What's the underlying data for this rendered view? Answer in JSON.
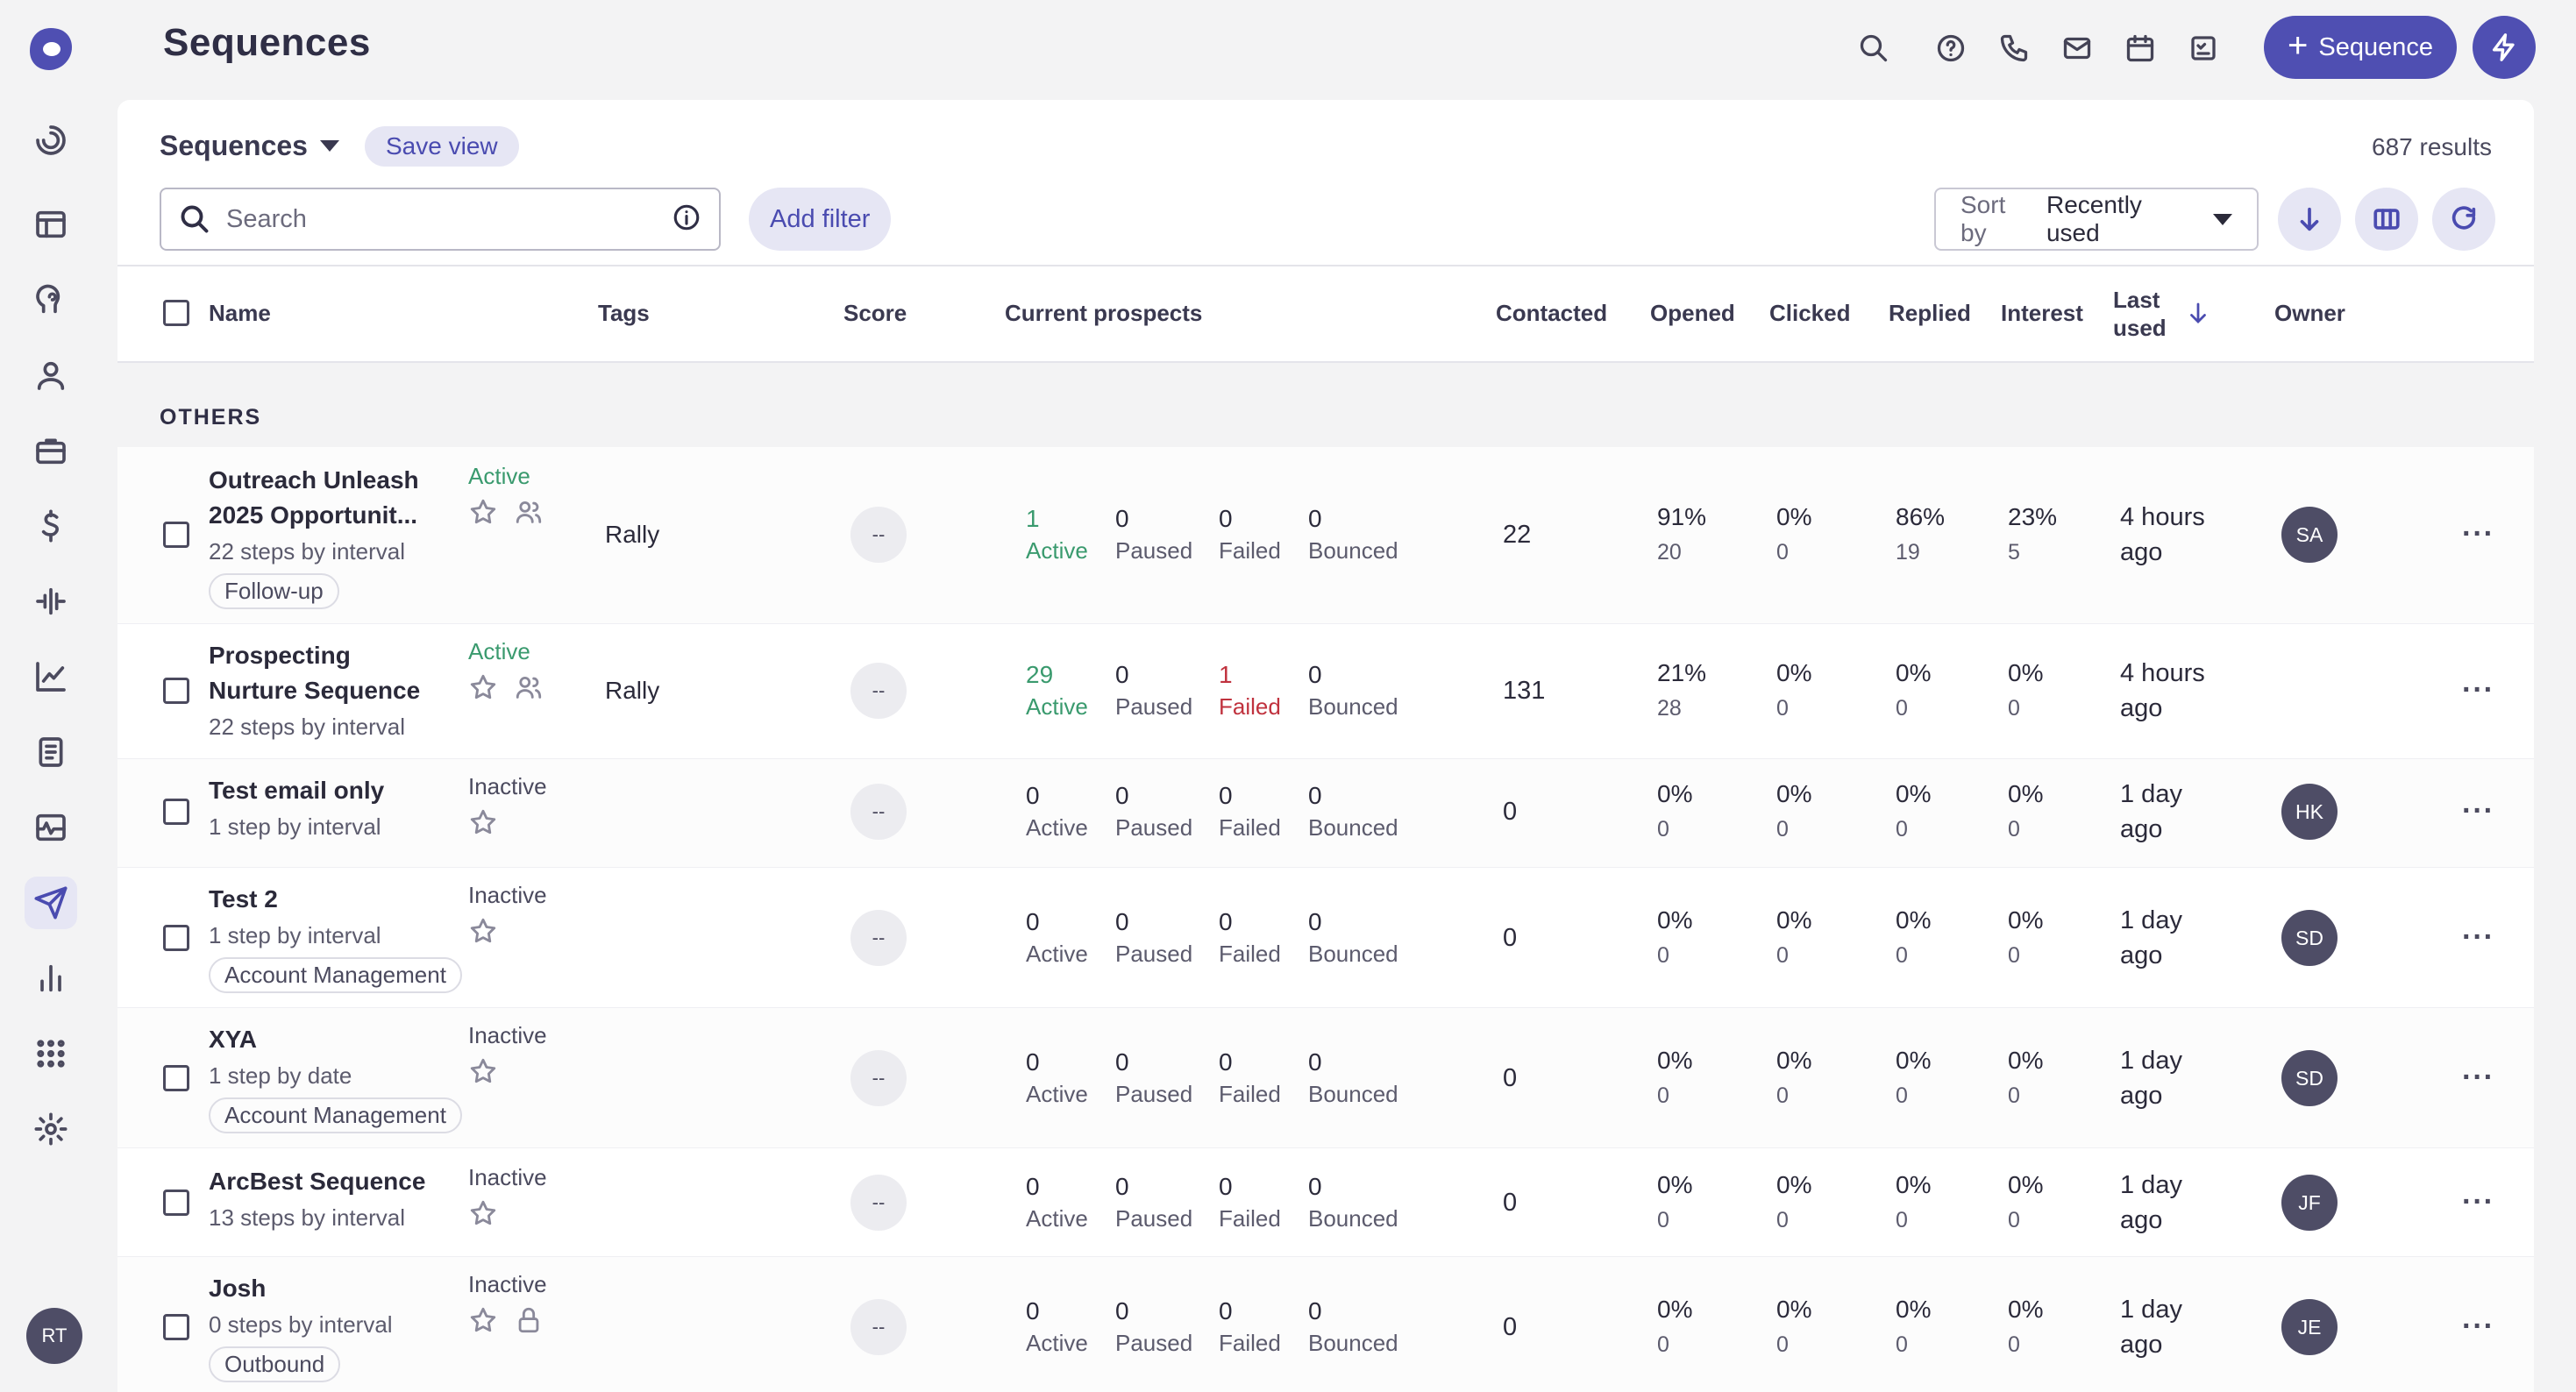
{
  "header": {
    "title": "Sequences",
    "new_sequence_label": "Sequence"
  },
  "user": {
    "initials": "RT"
  },
  "toolbar": {
    "view_name": "Sequences",
    "save_view_label": "Save view",
    "results": "687 results",
    "search_placeholder": "Search",
    "add_filter_label": "Add filter",
    "sort_label": "Sort by",
    "sort_value": "Recently used"
  },
  "columns": {
    "name": "Name",
    "tags": "Tags",
    "score": "Score",
    "current_prospects": "Current prospects",
    "contacted": "Contacted",
    "opened": "Opened",
    "clicked": "Clicked",
    "replied": "Replied",
    "interest": "Interest",
    "last_used_1": "Last",
    "last_used_2": "used",
    "owner": "Owner"
  },
  "group": {
    "label": "OTHERS"
  },
  "prospect_labels": {
    "active": "Active",
    "paused": "Paused",
    "failed": "Failed",
    "bounced": "Bounced"
  },
  "rows": [
    {
      "name_1": "Outreach Unleash",
      "name_2": "2025 Opportunit...",
      "sub": "22 steps by interval",
      "tag": "Follow-up",
      "status": "Active",
      "tags": "Rally",
      "score": "--",
      "active": "1",
      "paused": "0",
      "failed": "0",
      "bounced": "0",
      "contacted": "22",
      "opened": "91%",
      "opened_sub": "20",
      "clicked": "0%",
      "clicked_sub": "0",
      "replied": "86%",
      "replied_sub": "19",
      "interest": "23%",
      "interest_sub": "5",
      "last_1": "4 hours",
      "last_2": "ago",
      "owner": "SA",
      "more": "···"
    },
    {
      "name_1": "Prospecting",
      "name_2": "Nurture Sequence",
      "sub": "22 steps by interval",
      "tag": "",
      "status": "Active",
      "tags": "Rally",
      "score": "--",
      "active": "29",
      "paused": "0",
      "failed": "1",
      "bounced": "0",
      "contacted": "131",
      "opened": "21%",
      "opened_sub": "28",
      "clicked": "0%",
      "clicked_sub": "0",
      "replied": "0%",
      "replied_sub": "0",
      "interest": "0%",
      "interest_sub": "0",
      "last_1": "4 hours",
      "last_2": "ago",
      "owner": "",
      "more": "···"
    },
    {
      "name_1": "Test email only",
      "sub": "1 step by interval",
      "status": "Inactive",
      "score": "--",
      "active": "0",
      "paused": "0",
      "failed": "0",
      "bounced": "0",
      "contacted": "0",
      "opened": "0%",
      "opened_sub": "0",
      "clicked": "0%",
      "clicked_sub": "0",
      "replied": "0%",
      "replied_sub": "0",
      "interest": "0%",
      "interest_sub": "0",
      "last_1": "1 day",
      "last_2": "ago",
      "owner": "HK",
      "more": "···"
    },
    {
      "name_1": "Test 2",
      "sub": "1 step by interval",
      "tag": "Account Management",
      "status": "Inactive",
      "score": "--",
      "active": "0",
      "paused": "0",
      "failed": "0",
      "bounced": "0",
      "contacted": "0",
      "opened": "0%",
      "opened_sub": "0",
      "clicked": "0%",
      "clicked_sub": "0",
      "replied": "0%",
      "replied_sub": "0",
      "interest": "0%",
      "interest_sub": "0",
      "last_1": "1 day",
      "last_2": "ago",
      "owner": "SD",
      "more": "···"
    },
    {
      "name_1": "XYA",
      "sub": "1 step by date",
      "tag": "Account Management",
      "status": "Inactive",
      "score": "--",
      "active": "0",
      "paused": "0",
      "failed": "0",
      "bounced": "0",
      "contacted": "0",
      "opened": "0%",
      "opened_sub": "0",
      "clicked": "0%",
      "clicked_sub": "0",
      "replied": "0%",
      "replied_sub": "0",
      "interest": "0%",
      "interest_sub": "0",
      "last_1": "1 day",
      "last_2": "ago",
      "owner": "SD",
      "more": "···"
    },
    {
      "name_1": "ArcBest Sequence",
      "sub": "13 steps by interval",
      "status": "Inactive",
      "score": "--",
      "active": "0",
      "paused": "0",
      "failed": "0",
      "bounced": "0",
      "contacted": "0",
      "opened": "0%",
      "opened_sub": "0",
      "clicked": "0%",
      "clicked_sub": "0",
      "replied": "0%",
      "replied_sub": "0",
      "interest": "0%",
      "interest_sub": "0",
      "last_1": "1 day",
      "last_2": "ago",
      "owner": "JF",
      "more": "···"
    },
    {
      "name_1": "Josh",
      "sub": "0 steps by interval",
      "tag": "Outbound",
      "status": "Inactive",
      "score": "--",
      "active": "0",
      "paused": "0",
      "failed": "0",
      "bounced": "0",
      "contacted": "0",
      "opened": "0%",
      "opened_sub": "0",
      "clicked": "0%",
      "clicked_sub": "0",
      "replied": "0%",
      "replied_sub": "0",
      "interest": "0%",
      "interest_sub": "0",
      "last_1": "1 day",
      "last_2": "ago",
      "owner": "JE",
      "more": "···"
    }
  ],
  "colors": {
    "accent": "#4f4fb2",
    "active_green": "#3a9a6e",
    "failed_red": "#c0323e",
    "avatar": "#4e4d66"
  }
}
